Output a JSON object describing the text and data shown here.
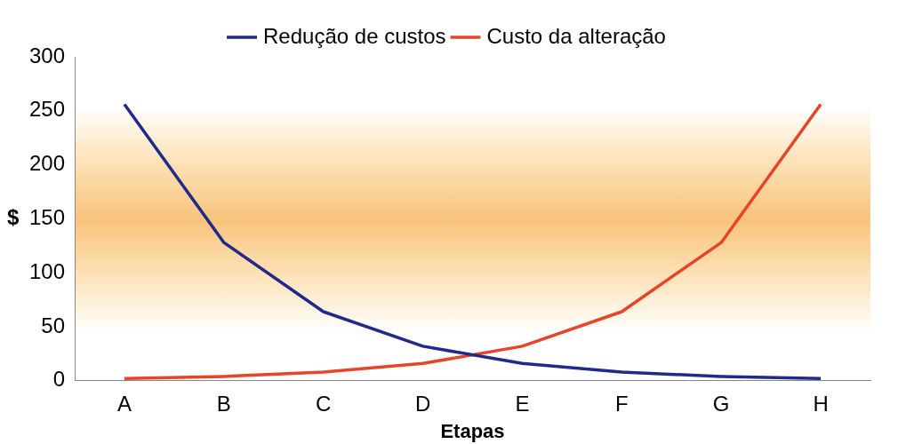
{
  "chart_data": {
    "type": "line",
    "xlabel": "Etapas",
    "ylabel": "$",
    "categories": [
      "A",
      "B",
      "C",
      "D",
      "E",
      "F",
      "G",
      "H"
    ],
    "series": [
      {
        "name": "Redução de custos",
        "color": "#1f2a8a",
        "values": [
          256,
          128,
          64,
          32,
          16,
          8,
          4,
          2
        ]
      },
      {
        "name": "Custo da alteração",
        "color": "#e8442a",
        "values": [
          2,
          4,
          8,
          16,
          32,
          64,
          128,
          256
        ]
      }
    ],
    "ylim": [
      0,
      300
    ],
    "yticks": [
      0,
      50,
      100,
      150,
      200,
      250,
      300
    ],
    "grid": false,
    "legend": "top",
    "marker": "none",
    "line_style": "solid"
  }
}
